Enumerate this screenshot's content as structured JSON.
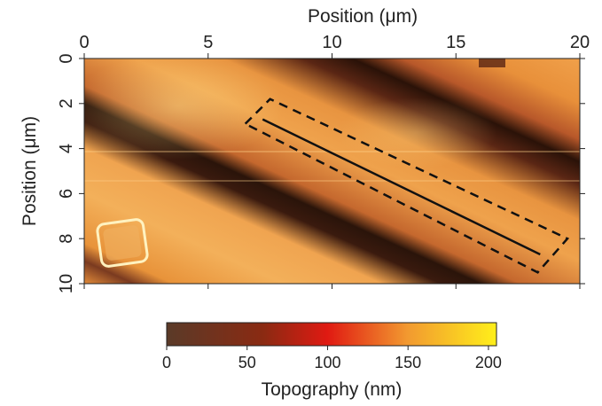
{
  "chart_data": {
    "type": "heatmap",
    "title": "",
    "xlabel": "Position (μm)",
    "ylabel": "Position (μm)",
    "x_axis_position": "top",
    "y_axis_inverted": true,
    "xlim": [
      0,
      20
    ],
    "ylim": [
      10,
      0
    ],
    "x_ticks": [
      0,
      5,
      10,
      15,
      20
    ],
    "y_ticks": [
      0,
      2,
      4,
      6,
      8,
      10
    ],
    "grid": false,
    "description_of_surface": "Diagonal alternating high (yellow-orange) and low (dark brown) topography bands running from lower-left to upper-right, with a small bright square particle near x≈1.5 μm, y≈8.2 μm.",
    "colorbar": {
      "label": "Topography (nm)",
      "range": [
        0,
        205
      ],
      "ticks": [
        0,
        50,
        100,
        150,
        200
      ],
      "colors": [
        {
          "value": 0,
          "color": "#5a3a28"
        },
        {
          "value": 60,
          "color": "#8a2a12"
        },
        {
          "value": 100,
          "color": "#e01a12"
        },
        {
          "value": 150,
          "color": "#f29a30"
        },
        {
          "value": 205,
          "color": "#ffef1a"
        }
      ]
    },
    "annotations": [
      {
        "type": "line",
        "style": "solid",
        "from": [
          7.2,
          2.7
        ],
        "to": [
          18.4,
          8.7
        ]
      },
      {
        "type": "rectangle",
        "style": "dashed",
        "corners": [
          [
            6.5,
            2.9
          ],
          [
            7.5,
            1.8
          ],
          [
            19.5,
            8.0
          ],
          [
            18.3,
            9.5
          ]
        ]
      }
    ]
  }
}
